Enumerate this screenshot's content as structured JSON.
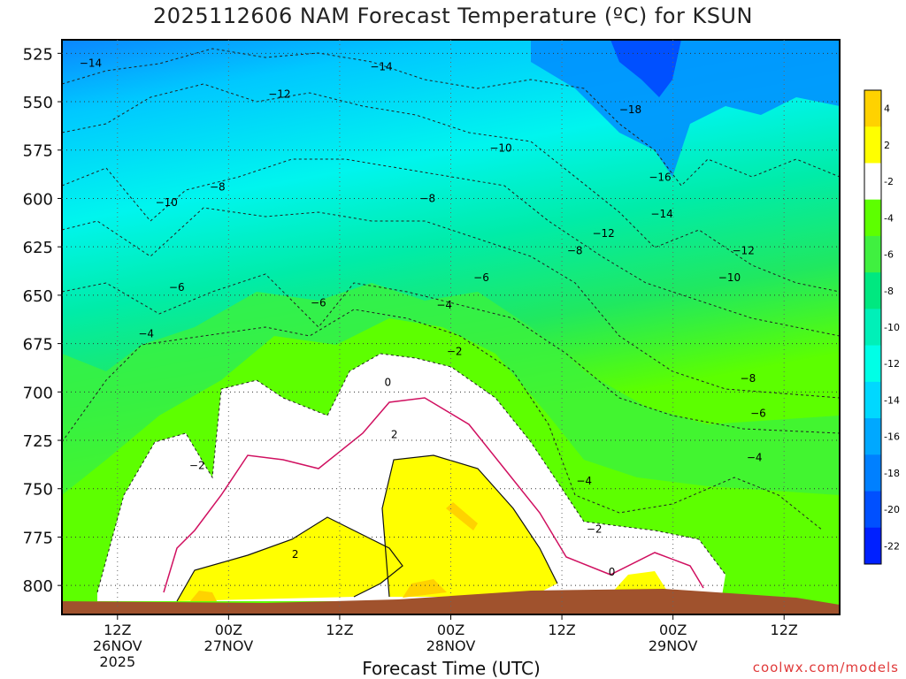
{
  "chart_data": {
    "type": "heatmap",
    "title": "2025112606 NAM Forecast Temperature (ºC) for KSUN",
    "xlabel": "Forecast Time (UTC)",
    "ylabel": "",
    "credit": "coolwx.com/models",
    "y_axis": {
      "ticks": [
        525,
        550,
        575,
        600,
        625,
        650,
        675,
        700,
        725,
        750,
        775,
        800
      ],
      "range": [
        815,
        518
      ],
      "units": "hPa"
    },
    "x_axis": {
      "start_hour": 6,
      "end_hour": 90,
      "ticks": [
        {
          "hour": 12,
          "lines": [
            "12Z",
            "26NOV",
            "2025"
          ]
        },
        {
          "hour": 24,
          "lines": [
            "00Z",
            "27NOV"
          ]
        },
        {
          "hour": 36,
          "lines": [
            "12Z"
          ]
        },
        {
          "hour": 48,
          "lines": [
            "00Z",
            "28NOV"
          ]
        },
        {
          "hour": 60,
          "lines": [
            "12Z"
          ]
        },
        {
          "hour": 72,
          "lines": [
            "00Z",
            "29NOV"
          ]
        },
        {
          "hour": 84,
          "lines": [
            "12Z"
          ]
        }
      ]
    },
    "colorbar": {
      "labels": [
        "4",
        "2",
        "-2",
        "-4",
        "-6",
        "-8",
        "-10",
        "-12",
        "-14",
        "-16",
        "-18",
        "-20",
        "-22"
      ],
      "colors": [
        "#ffd200",
        "#ffff00",
        "#ffffff",
        "#5dff00",
        "#40f040",
        "#00e880",
        "#00f0b8",
        "#00ffe6",
        "#00d8ff",
        "#00a8ff",
        "#0080ff",
        "#0050ff",
        "#0020ff"
      ]
    },
    "contour_labels": [
      {
        "text": "-14",
        "hour": 9.1,
        "p": 530
      },
      {
        "text": "-14",
        "hour": 40.5,
        "p": 532
      },
      {
        "text": "-12",
        "hour": 29.5,
        "p": 546
      },
      {
        "text": "-18",
        "hour": 67.4,
        "p": 554
      },
      {
        "text": "-10",
        "hour": 53.4,
        "p": 574
      },
      {
        "text": "-8",
        "hour": 22.8,
        "p": 594
      },
      {
        "text": "-10",
        "hour": 17.3,
        "p": 602
      },
      {
        "text": "-8",
        "hour": 45.5,
        "p": 600
      },
      {
        "text": "-16",
        "hour": 70.6,
        "p": 589
      },
      {
        "text": "-14",
        "hour": 70.8,
        "p": 608
      },
      {
        "text": "-12",
        "hour": 64.5,
        "p": 618
      },
      {
        "text": "-8",
        "hour": 61.4,
        "p": 627
      },
      {
        "text": "-12",
        "hour": 79.6,
        "p": 627
      },
      {
        "text": "-6",
        "hour": 18.4,
        "p": 646
      },
      {
        "text": "-6",
        "hour": 51.3,
        "p": 641
      },
      {
        "text": "-10",
        "hour": 78.1,
        "p": 641
      },
      {
        "text": "-6",
        "hour": 33.7,
        "p": 654
      },
      {
        "text": "-4",
        "hour": 47.3,
        "p": 655
      },
      {
        "text": "-4",
        "hour": 15.1,
        "p": 670
      },
      {
        "text": "-2",
        "hour": 48.4,
        "p": 679
      },
      {
        "text": "-8",
        "hour": 80.1,
        "p": 693
      },
      {
        "text": "0",
        "hour": 41.2,
        "p": 695
      },
      {
        "text": "-6",
        "hour": 81.2,
        "p": 711
      },
      {
        "text": "2",
        "hour": 41.9,
        "p": 722
      },
      {
        "text": "-2",
        "hour": 20.6,
        "p": 738
      },
      {
        "text": "-4",
        "hour": 80.8,
        "p": 734
      },
      {
        "text": "-4",
        "hour": 62.4,
        "p": 746
      },
      {
        "text": "-2",
        "hour": 63.5,
        "p": 771
      },
      {
        "text": "2",
        "hour": 31.2,
        "p": 784
      },
      {
        "text": "0",
        "hour": 65.4,
        "p": 793
      }
    ],
    "grid": true
  }
}
